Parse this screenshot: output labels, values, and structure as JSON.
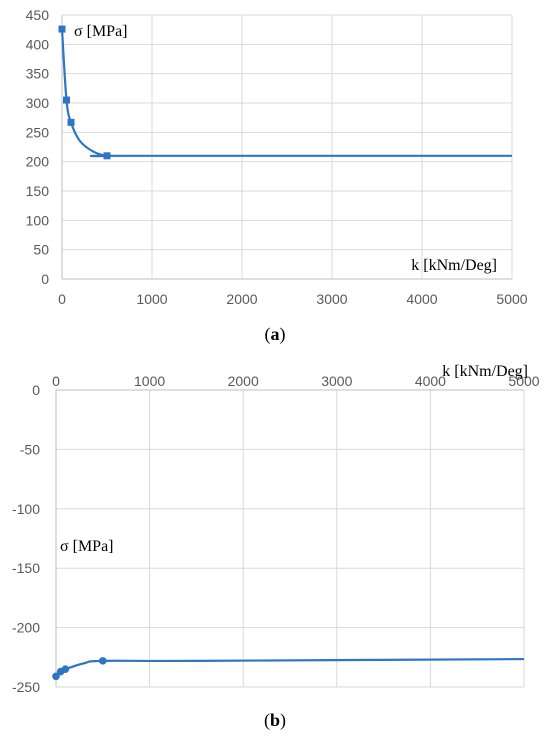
{
  "chart_data": [
    {
      "type": "line",
      "panel_label": "a",
      "xlabel": "k [kNm/Deg]",
      "ylabel": "σ [MPa]",
      "xlim": [
        0,
        5000
      ],
      "ylim": [
        0,
        450
      ],
      "xticks": [
        0,
        1000,
        2000,
        3000,
        4000,
        5000
      ],
      "yticks": [
        0,
        50,
        100,
        150,
        200,
        250,
        300,
        350,
        400,
        450
      ],
      "grid": true,
      "series": [
        {
          "color": "#2e75c6",
          "markers": [
            {
              "x": 0,
              "y": 426
            },
            {
              "x": 50,
              "y": 305
            },
            {
              "x": 100,
              "y": 267
            },
            {
              "x": 500,
              "y": 210
            }
          ],
          "curve": [
            {
              "x": 0,
              "y": 426
            },
            {
              "x": 50,
              "y": 305
            },
            {
              "x": 100,
              "y": 267
            },
            {
              "x": 200,
              "y": 235
            },
            {
              "x": 350,
              "y": 217
            },
            {
              "x": 500,
              "y": 210
            },
            {
              "x": 700,
              "y": 210
            },
            {
              "x": 5000,
              "y": 210
            }
          ]
        }
      ]
    },
    {
      "type": "line",
      "panel_label": "b",
      "xlabel": "k [kNm/Deg]",
      "ylabel": "σ [MPa]",
      "xlim": [
        0,
        5000
      ],
      "ylim": [
        -250,
        0
      ],
      "xticks": [
        0,
        1000,
        2000,
        3000,
        4000,
        5000
      ],
      "yticks": [
        0,
        -50,
        -100,
        -150,
        -200,
        -250
      ],
      "grid": true,
      "series": [
        {
          "color": "#2e75c6",
          "markers": [
            {
              "x": 0,
              "y": -241
            },
            {
              "x": 50,
              "y": -237
            },
            {
              "x": 100,
              "y": -235
            },
            {
              "x": 500,
              "y": -228
            }
          ],
          "curve": [
            {
              "x": 0,
              "y": -241
            },
            {
              "x": 50,
              "y": -237
            },
            {
              "x": 100,
              "y": -235
            },
            {
              "x": 300,
              "y": -230
            },
            {
              "x": 500,
              "y": -228
            },
            {
              "x": 1500,
              "y": -228
            },
            {
              "x": 5000,
              "y": -226.5
            }
          ]
        }
      ]
    }
  ]
}
